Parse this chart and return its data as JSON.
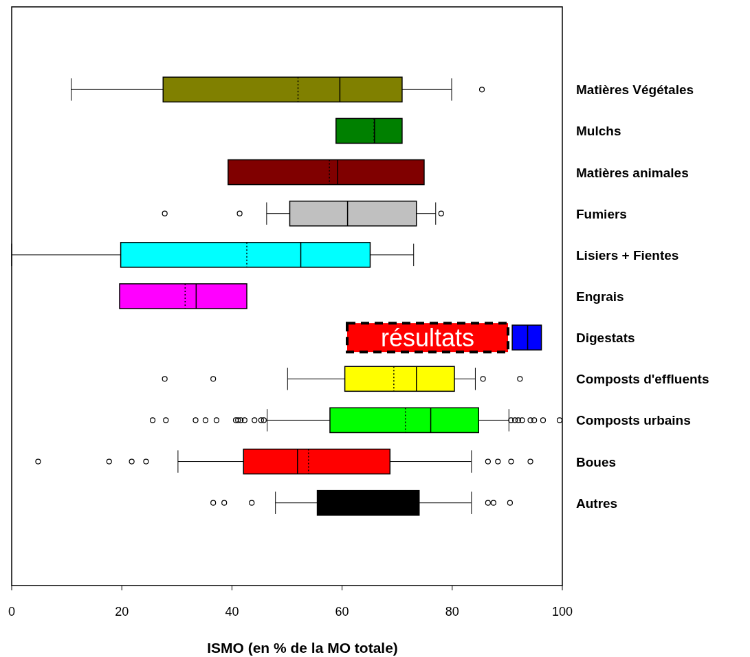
{
  "chart_data": {
    "type": "box",
    "orientation": "horizontal",
    "xlabel": "ISMO (en % de la MO totale)",
    "categories": [
      "Matières Végétales",
      "Mulchs",
      "Matières animales",
      "Fumiers",
      "Lisiers + Fientes",
      "Engrais",
      "Digestats",
      "Composts d'effluents",
      "Composts urbains",
      "Boues",
      "Autres"
    ],
    "colors": [
      "#808000",
      "#008000",
      "#800000",
      "#c0c0c0",
      "#00ffff",
      "#ff00ff",
      "#0000ff",
      "#ffff00",
      "#00ff00",
      "#ff0000",
      "#000000"
    ],
    "boxes": [
      {
        "low": 10.8,
        "q1": 27.5,
        "median": 59.6,
        "q3": 70.9,
        "high": 79.9,
        "mean": 52.0,
        "outliers": [
          85.4
        ]
      },
      {
        "low": 58.9,
        "q1": 58.9,
        "median": 65.9,
        "q3": 70.9,
        "high": 70.9,
        "mean": 65.8
      },
      {
        "low": 39.3,
        "q1": 39.3,
        "median": 59.2,
        "q3": 74.9,
        "high": 74.9,
        "mean": 57.7
      },
      {
        "low": 46.3,
        "q1": 50.5,
        "median": 61.0,
        "q3": 73.5,
        "high": 77.0,
        "outliers": [
          27.8,
          41.4,
          78.0
        ]
      },
      {
        "low": 0,
        "q1": 19.8,
        "median": 52.5,
        "q3": 65.1,
        "high": 73.0,
        "mean": 42.7
      },
      {
        "low": 19.6,
        "q1": 19.6,
        "median": 33.5,
        "q3": 42.7,
        "high": 42.7,
        "mean": 31.5
      },
      {
        "low": 90.9,
        "q1": 90.9,
        "median": 93.7,
        "q3": 96.2,
        "high": 96.2
      },
      {
        "low": 50.1,
        "q1": 60.5,
        "median": 73.5,
        "q3": 80.4,
        "high": 84.2,
        "mean": 69.4,
        "outliers": [
          27.8,
          36.6,
          85.6,
          92.3
        ]
      },
      {
        "low": 46.4,
        "q1": 57.8,
        "median": 76.1,
        "q3": 84.8,
        "high": 90.3,
        "mean": 71.5,
        "outliers": [
          25.6,
          28.0,
          33.4,
          35.2,
          37.2,
          40.7,
          41.1,
          41.6,
          42.3,
          44.1,
          45.3,
          45.8,
          90.7,
          91.4,
          92.0,
          92.7,
          94.2,
          94.9,
          96.5,
          99.5
        ]
      },
      {
        "low": 30.2,
        "q1": 42.1,
        "median": 51.9,
        "q3": 68.7,
        "high": 83.5,
        "mean": 53.9,
        "outliers": [
          4.8,
          17.7,
          21.8,
          24.4,
          86.5,
          88.3,
          90.7,
          94.2
        ]
      },
      {
        "low": 47.9,
        "q1": 55.5,
        "median": 64.0,
        "q3": 74.0,
        "high": 83.5,
        "outliers": [
          36.6,
          38.6,
          43.6,
          86.5,
          87.5,
          90.5
        ]
      }
    ],
    "xlim": [
      0,
      100
    ],
    "xticks": [
      0,
      20,
      40,
      60,
      80,
      100
    ],
    "annotations": [
      "résultats"
    ]
  }
}
